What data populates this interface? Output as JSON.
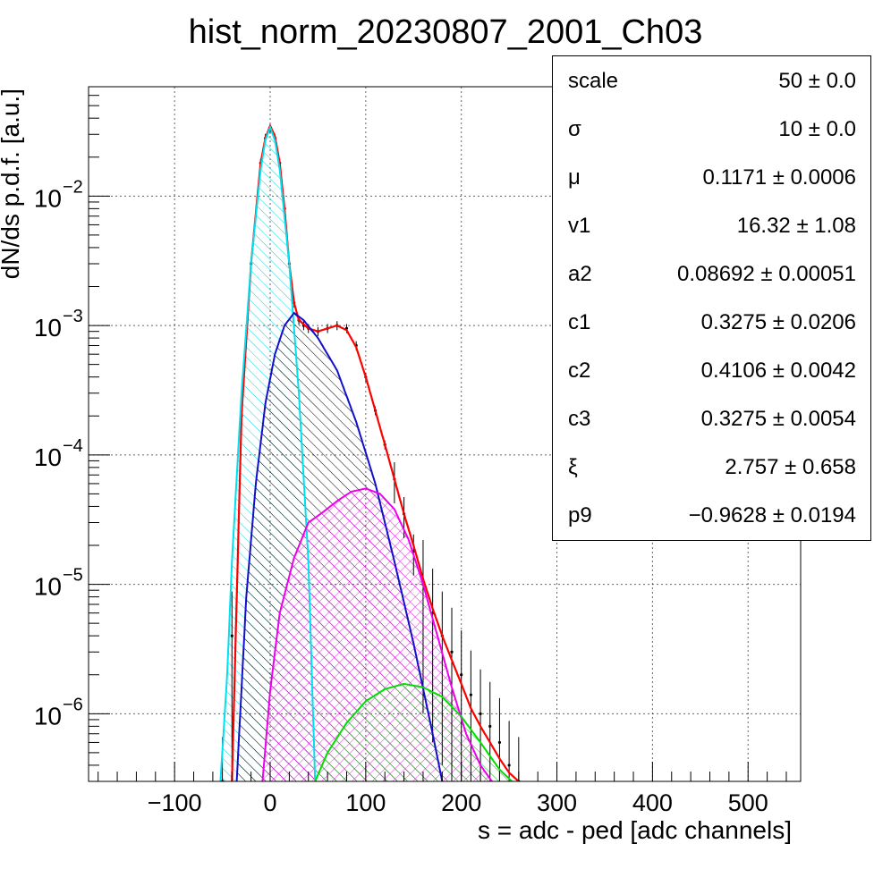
{
  "chart_data": {
    "type": "histogram-fit",
    "title": "hist_norm_20230807_2001_Ch03",
    "xlabel": "s = adc - ped [adc channels]",
    "ylabel": "dN/ds p.d.f. [a.u.]",
    "xlim": [
      -190,
      555
    ],
    "ylim": [
      3e-07,
      0.07
    ],
    "yscale": "log",
    "grid": true,
    "x_ticks": [
      "−100",
      "0",
      "100",
      "200",
      "300",
      "400",
      "500"
    ],
    "x_tick_values": [
      -100,
      0,
      100,
      200,
      300,
      400,
      500
    ],
    "y_ticks": [
      {
        "value": 1e-06,
        "base": "10",
        "exp": "−6"
      },
      {
        "value": 1e-05,
        "base": "10",
        "exp": "−5"
      },
      {
        "value": 0.0001,
        "base": "10",
        "exp": "−4"
      },
      {
        "value": 0.001,
        "base": "10",
        "exp": "−3"
      },
      {
        "value": 0.01,
        "base": "10",
        "exp": "−2"
      }
    ],
    "series": [
      {
        "kind": "data",
        "color": "#000000",
        "x": [
          -50,
          -40,
          -30,
          -20,
          -10,
          -5,
          0,
          5,
          10,
          15,
          20,
          25,
          30,
          35,
          40,
          50,
          60,
          70,
          80,
          90,
          100,
          110,
          120,
          130,
          140,
          150,
          160,
          170,
          180,
          190,
          200,
          210,
          220,
          230,
          240,
          250,
          260
        ],
        "y": [
          3e-07,
          4e-06,
          0.0002,
          0.003,
          0.018,
          0.028,
          0.033,
          0.028,
          0.018,
          0.008,
          0.003,
          0.0015,
          0.0011,
          0.001,
          0.00095,
          0.0009,
          0.00095,
          0.001,
          0.00095,
          0.0007,
          0.0004,
          0.00022,
          0.00012,
          6.5e-05,
          3.5e-05,
          1.8e-05,
          1e-05,
          6e-06,
          4e-06,
          3e-06,
          2e-06,
          1.4e-06,
          1e-06,
          8e-07,
          6e-07,
          4e-07,
          3e-07
        ]
      },
      {
        "kind": "fit-total",
        "color": "#ff0000",
        "x": [
          -40,
          -30,
          -20,
          -10,
          -5,
          0,
          5,
          10,
          15,
          20,
          25,
          30,
          40,
          50,
          60,
          70,
          80,
          90,
          100,
          110,
          120,
          130,
          140,
          150,
          160,
          170,
          180,
          190,
          200,
          210,
          220,
          230,
          240,
          250,
          260
        ],
        "y": [
          3e-07,
          0.0002,
          0.003,
          0.018,
          0.028,
          0.035,
          0.029,
          0.018,
          0.008,
          0.003,
          0.0015,
          0.0011,
          0.00095,
          0.0009,
          0.00095,
          0.001,
          0.00092,
          0.00068,
          0.0004,
          0.00022,
          0.00012,
          6.5e-05,
          3.5e-05,
          2e-05,
          1.1e-05,
          6.5e-06,
          4e-06,
          2.6e-06,
          1.7e-06,
          1.1e-06,
          8e-07,
          6e-07,
          4.5e-07,
          3.5e-07,
          3e-07
        ]
      },
      {
        "kind": "pedestal",
        "color": "#00e0ee",
        "fill": true,
        "x": [
          -52,
          -45,
          -40,
          -30,
          -20,
          -10,
          -5,
          0,
          5,
          10,
          20,
          30,
          40,
          47
        ],
        "y": [
          3e-07,
          2e-06,
          1.5e-05,
          0.0003,
          0.003,
          0.016,
          0.027,
          0.034,
          0.027,
          0.016,
          0.003,
          0.0003,
          1.5e-05,
          3e-07
        ]
      },
      {
        "kind": "1-photoelectron",
        "color": "#1010cc",
        "fill": true,
        "x": [
          -35,
          -25,
          -15,
          -5,
          5,
          15,
          25,
          35,
          50,
          70,
          90,
          110,
          130,
          150,
          170,
          180
        ],
        "y": [
          3e-07,
          8e-06,
          6e-05,
          0.00025,
          0.0006,
          0.001,
          0.00125,
          0.0011,
          0.0008,
          0.00045,
          0.00018,
          6e-05,
          1.5e-05,
          3.5e-06,
          7e-07,
          3e-07
        ]
      },
      {
        "kind": "2-photoelectron",
        "color": "#ee00ee",
        "fill": true,
        "x": [
          -8,
          0,
          10,
          25,
          40,
          55,
          70,
          85,
          100,
          115,
          130,
          145,
          160,
          175,
          190,
          205,
          220,
          232
        ],
        "y": [
          3e-07,
          1.5e-06,
          6e-06,
          1.6e-05,
          3e-05,
          3.6e-05,
          4.4e-05,
          5.2e-05,
          5.5e-05,
          5e-05,
          3.8e-05,
          2.2e-05,
          1e-05,
          4e-06,
          1.6e-06,
          7e-07,
          4e-07,
          3e-07
        ]
      },
      {
        "kind": "3-photoelectron",
        "color": "#00dd00",
        "fill": true,
        "x": [
          47,
          60,
          80,
          100,
          120,
          140,
          160,
          180,
          200,
          220,
          240,
          253
        ],
        "y": [
          3e-07,
          5e-07,
          8.5e-07,
          1.25e-06,
          1.55e-06,
          1.7e-06,
          1.6e-06,
          1.35e-06,
          9.5e-07,
          6e-07,
          3.7e-07,
          3e-07
        ]
      }
    ]
  },
  "stats": [
    {
      "name": "scale",
      "value": "50 ± 0.0"
    },
    {
      "name": "σ",
      "value": "10 ± 0.0"
    },
    {
      "name": "μ",
      "value": "0.1171 ± 0.0006"
    },
    {
      "name": "v1",
      "value": "16.32 ± 1.08"
    },
    {
      "name": "a2",
      "value": "0.08692 ± 0.00051"
    },
    {
      "name": "c1",
      "value": "0.3275 ± 0.0206"
    },
    {
      "name": "c2",
      "value": "0.4106 ± 0.0042"
    },
    {
      "name": "c3",
      "value": "0.3275 ± 0.0054"
    },
    {
      "name": "ξ",
      "value": "2.757 ± 0.658"
    },
    {
      "name": "p9",
      "value": "−0.9628 ± 0.0194"
    }
  ]
}
